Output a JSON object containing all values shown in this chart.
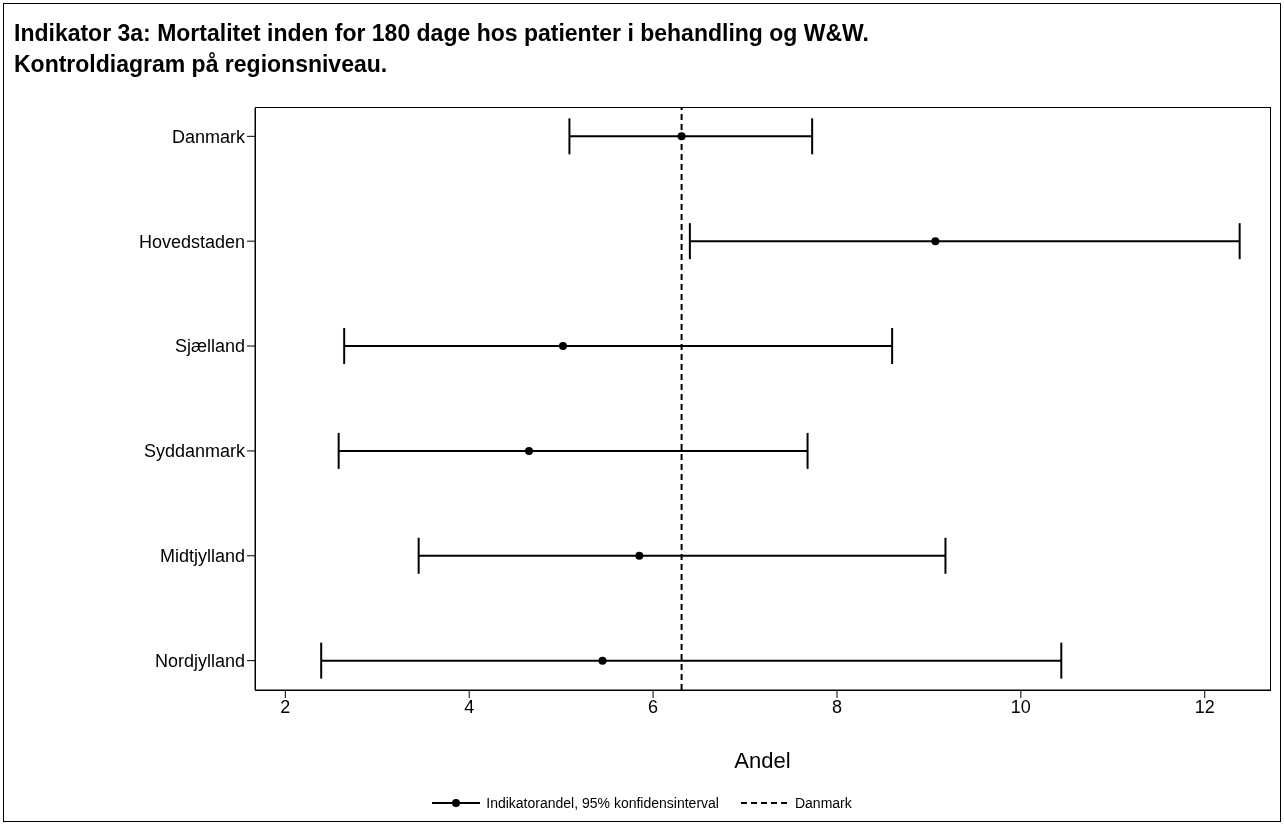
{
  "chart_data": {
    "type": "scatter",
    "title": "Indikator 3a: Mortalitet inden for 180 dage hos patienter i behandling og W&W.\nKontroldiagram på regionsniveau.",
    "xlabel": "Andel",
    "orientation": "horizontal",
    "categories": [
      "Danmark",
      "Hovedstaden",
      "Sjælland",
      "Syddanmark",
      "Midtjylland",
      "Nordjylland"
    ],
    "series": [
      {
        "name": "Indikatorandel, 95% konfidensinterval",
        "color": "#000000",
        "values": [
          6.31,
          9.07,
          5.02,
          4.65,
          5.85,
          5.45
        ],
        "errors": [
          [
            5.09,
            7.73
          ],
          [
            6.4,
            12.38
          ],
          [
            2.64,
            8.6
          ],
          [
            2.58,
            7.68
          ],
          [
            3.45,
            9.18
          ],
          [
            2.39,
            10.44
          ]
        ]
      }
    ],
    "xlim": [
      1.67,
      12.71
    ],
    "xticks": [
      2,
      4,
      6,
      8,
      10,
      12
    ],
    "ref_lines": [
      {
        "axis": "x",
        "value": 6.31,
        "label": "Danmark",
        "line_style": "dashed",
        "color": "#000000"
      }
    ],
    "legend": "bottom",
    "marker": "circle"
  }
}
